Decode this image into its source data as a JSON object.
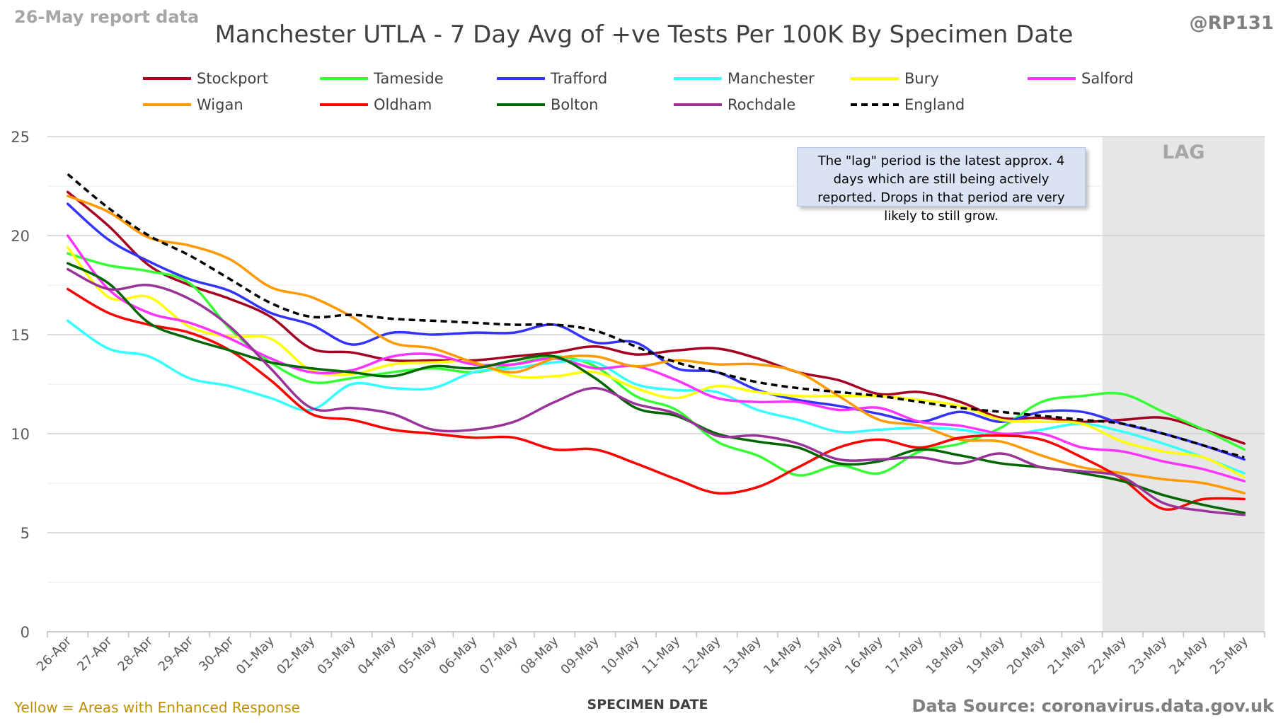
{
  "header": {
    "report_date": "26-May report data",
    "handle": "@RP131"
  },
  "footer": {
    "note": "Yellow = Areas with Enhanced Response",
    "source": "Data Source: coronavirus.data.gov.uk"
  },
  "annotation_text": "The \"lag\" period is the latest approx. 4 days which are still being actively reported. Drops in that period are very likely to still grow.",
  "colors": {
    "lag_band": "#e7e6e6",
    "gridline": "#d9d9d9",
    "axis_text": "#595959"
  },
  "chart_data": {
    "type": "line",
    "title": "Manchester UTLA - 7 Day Avg of +ve Tests Per 100K By Specimen Date",
    "xlabel": "SPECIMEN DATE",
    "ylabel": "",
    "ylim": [
      0,
      25
    ],
    "yticks": [
      0,
      5,
      10,
      15,
      20,
      25
    ],
    "grid": true,
    "legend_position": "top",
    "lag_label": "LAG",
    "lag_start": "22-May",
    "lag_end": "25-May",
    "categories": [
      "26-Apr",
      "27-Apr",
      "28-Apr",
      "29-Apr",
      "30-Apr",
      "01-May",
      "02-May",
      "03-May",
      "04-May",
      "05-May",
      "06-May",
      "07-May",
      "08-May",
      "09-May",
      "10-May",
      "11-May",
      "12-May",
      "13-May",
      "14-May",
      "15-May",
      "16-May",
      "17-May",
      "18-May",
      "19-May",
      "20-May",
      "21-May",
      "22-May",
      "23-May",
      "24-May",
      "25-May"
    ],
    "series": [
      {
        "name": "Stockport",
        "color": "#a50021",
        "dash": false,
        "values": [
          22.2,
          20.5,
          18.5,
          17.5,
          16.8,
          15.9,
          14.3,
          14.1,
          13.7,
          13.7,
          13.7,
          13.9,
          14.1,
          14.4,
          14.0,
          14.2,
          14.3,
          13.8,
          13.1,
          12.7,
          12.0,
          12.1,
          11.6,
          10.8,
          10.8,
          10.6,
          10.7,
          10.8,
          10.2,
          9.5
        ]
      },
      {
        "name": "Tameside",
        "color": "#33ff33",
        "dash": false,
        "values": [
          19.1,
          18.5,
          18.2,
          17.6,
          15.3,
          13.6,
          12.6,
          12.8,
          13.1,
          13.3,
          13.1,
          13.5,
          13.9,
          13.4,
          11.9,
          11.2,
          9.6,
          8.9,
          7.9,
          8.4,
          8.0,
          9.1,
          9.5,
          10.3,
          11.6,
          11.9,
          12.0,
          11.1,
          10.2,
          9.2
        ]
      },
      {
        "name": "Trafford",
        "color": "#3333ff",
        "dash": false,
        "values": [
          21.6,
          19.8,
          18.7,
          17.8,
          17.2,
          16.1,
          15.5,
          14.5,
          15.1,
          15.0,
          15.1,
          15.1,
          15.5,
          14.6,
          14.6,
          13.3,
          13.1,
          12.2,
          11.7,
          11.4,
          11.0,
          10.6,
          11.1,
          10.6,
          11.1,
          11.1,
          10.5,
          10.0,
          9.4,
          8.7
        ]
      },
      {
        "name": "Manchester",
        "color": "#33ffff",
        "dash": false,
        "values": [
          15.7,
          14.3,
          13.9,
          12.8,
          12.4,
          11.8,
          11.2,
          12.5,
          12.3,
          12.3,
          13.1,
          13.3,
          13.6,
          13.6,
          12.5,
          12.2,
          12.1,
          11.2,
          10.7,
          10.1,
          10.2,
          10.3,
          10.2,
          9.9,
          10.2,
          10.5,
          10.1,
          9.5,
          8.8,
          8.0
        ]
      },
      {
        "name": "Bury",
        "color": "#ffff00",
        "dash": false,
        "values": [
          19.4,
          16.9,
          16.9,
          15.4,
          14.9,
          14.8,
          13.2,
          13.0,
          13.5,
          13.6,
          13.6,
          12.9,
          12.9,
          13.1,
          12.3,
          11.8,
          12.4,
          12.1,
          11.9,
          11.9,
          11.9,
          11.7,
          11.4,
          10.7,
          10.6,
          10.5,
          9.6,
          9.1,
          8.8,
          7.8
        ]
      },
      {
        "name": "Salford",
        "color": "#ff33ff",
        "dash": false,
        "values": [
          20.0,
          17.3,
          16.1,
          15.6,
          14.8,
          13.8,
          13.1,
          13.2,
          13.9,
          14.0,
          13.5,
          13.5,
          13.8,
          13.3,
          13.4,
          12.7,
          11.8,
          11.6,
          11.6,
          11.2,
          11.3,
          10.6,
          10.4,
          10.0,
          10.0,
          9.3,
          9.1,
          8.6,
          8.2,
          7.6
        ]
      },
      {
        "name": "Wigan",
        "color": "#ff9900",
        "dash": false,
        "values": [
          22.0,
          21.2,
          19.9,
          19.5,
          18.8,
          17.4,
          16.9,
          15.9,
          14.6,
          14.3,
          13.6,
          13.1,
          13.8,
          13.9,
          13.4,
          13.7,
          13.5,
          13.5,
          13.1,
          11.9,
          10.7,
          10.4,
          9.7,
          9.6,
          8.9,
          8.3,
          8.0,
          7.7,
          7.5,
          7.0
        ]
      },
      {
        "name": "Oldham",
        "color": "#ff0000",
        "dash": false,
        "values": [
          17.3,
          16.1,
          15.5,
          15.1,
          14.2,
          12.7,
          11.0,
          10.7,
          10.2,
          10.0,
          9.8,
          9.8,
          9.2,
          9.2,
          8.5,
          7.7,
          7.0,
          7.3,
          8.3,
          9.3,
          9.7,
          9.3,
          9.8,
          9.9,
          9.7,
          8.8,
          7.7,
          6.2,
          6.7,
          6.7
        ]
      },
      {
        "name": "Bolton",
        "color": "#006600",
        "dash": false,
        "values": [
          18.6,
          17.6,
          15.6,
          14.8,
          14.2,
          13.6,
          13.3,
          13.1,
          12.9,
          13.4,
          13.3,
          13.7,
          13.9,
          12.8,
          11.3,
          10.9,
          10.0,
          9.6,
          9.3,
          8.5,
          8.6,
          9.2,
          8.9,
          8.5,
          8.3,
          8.0,
          7.6,
          6.9,
          6.4,
          6.0
        ]
      },
      {
        "name": "Rochdale",
        "color": "#993399",
        "dash": false,
        "values": [
          18.3,
          17.3,
          17.5,
          16.8,
          15.4,
          13.3,
          11.3,
          11.3,
          11.0,
          10.2,
          10.2,
          10.6,
          11.6,
          12.3,
          11.5,
          11.0,
          9.9,
          9.9,
          9.5,
          8.7,
          8.7,
          8.8,
          8.5,
          9.0,
          8.3,
          8.1,
          7.8,
          6.5,
          6.1,
          5.9
        ]
      },
      {
        "name": "England",
        "color": "#000000",
        "dash": true,
        "values": [
          23.1,
          21.4,
          20.0,
          19.0,
          17.8,
          16.6,
          15.9,
          16.0,
          15.8,
          15.7,
          15.6,
          15.5,
          15.5,
          15.2,
          14.4,
          13.6,
          13.1,
          12.6,
          12.3,
          12.1,
          11.9,
          11.6,
          11.3,
          11.1,
          10.9,
          10.7,
          10.5,
          10.0,
          9.4,
          8.8
        ]
      }
    ]
  }
}
